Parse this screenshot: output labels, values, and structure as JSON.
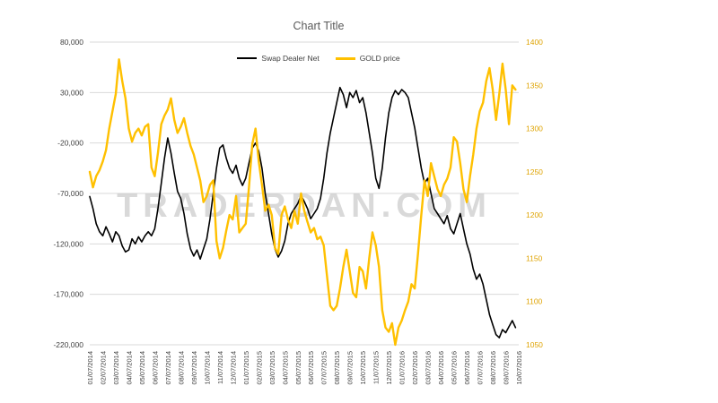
{
  "chart_data": {
    "type": "line",
    "title": "Chart Title",
    "watermark": "TRADERDAN.COM",
    "legend_position": "top",
    "grid": "horizontal",
    "x_labels": [
      "01/07/2014",
      "02/07/2014",
      "03/07/2014",
      "04/07/2014",
      "05/07/2014",
      "06/07/2014",
      "07/07/2014",
      "08/07/2014",
      "09/07/2014",
      "10/07/2014",
      "11/07/2014",
      "12/07/2014",
      "01/07/2015",
      "02/07/2015",
      "03/07/2015",
      "04/07/2015",
      "05/07/2015",
      "06/07/2015",
      "07/07/2015",
      "08/07/2015",
      "09/07/2015",
      "10/07/2015",
      "11/07/2015",
      "12/07/2015",
      "01/07/2016",
      "02/07/2016",
      "03/07/2016",
      "04/07/2016",
      "05/07/2016",
      "06/07/2016",
      "07/07/2016",
      "08/07/2016",
      "09/07/2016",
      "10/07/2016"
    ],
    "left_axis": {
      "min": -220000,
      "max": 80000,
      "tick_values": [
        80000,
        30000,
        -20000,
        -70000,
        -120000,
        -170000,
        -220000
      ],
      "tick_labels": [
        "80,000",
        "30,000",
        "-20,000",
        "-70,000",
        "-120,000",
        "-170,000",
        "-220,000"
      ]
    },
    "right_axis": {
      "min": 1050,
      "max": 1400,
      "tick_values": [
        1400,
        1350,
        1300,
        1250,
        1200,
        1150,
        1100,
        1050
      ],
      "tick_labels": [
        "1400",
        "1350",
        "1300",
        "1250",
        "1200",
        "1150",
        "1100",
        "1050"
      ]
    },
    "series": [
      {
        "id": "swap-dealer-net",
        "name": "Swap Dealer Net",
        "axis": "left",
        "color": "#000000",
        "values": [
          -73000,
          -85000,
          -100000,
          -108000,
          -112000,
          -103000,
          -110000,
          -118000,
          -108000,
          -112000,
          -122000,
          -128000,
          -126000,
          -115000,
          -120000,
          -113000,
          -118000,
          -112000,
          -108000,
          -112000,
          -105000,
          -85000,
          -60000,
          -35000,
          -15000,
          -30000,
          -50000,
          -68000,
          -75000,
          -90000,
          -110000,
          -125000,
          -132000,
          -126000,
          -135000,
          -125000,
          -115000,
          -95000,
          -70000,
          -45000,
          -25000,
          -22000,
          -35000,
          -45000,
          -50000,
          -42000,
          -55000,
          -62000,
          -55000,
          -40000,
          -25000,
          -20000,
          -28000,
          -45000,
          -70000,
          -90000,
          -110000,
          -125000,
          -133000,
          -127000,
          -117000,
          -100000,
          -90000,
          -85000,
          -80000,
          -72000,
          -78000,
          -85000,
          -95000,
          -90000,
          -85000,
          -75000,
          -55000,
          -30000,
          -10000,
          5000,
          20000,
          35000,
          28000,
          15000,
          30000,
          25000,
          32000,
          20000,
          25000,
          10000,
          -10000,
          -30000,
          -55000,
          -65000,
          -45000,
          -15000,
          10000,
          25000,
          32000,
          28000,
          33000,
          30000,
          25000,
          10000,
          -5000,
          -25000,
          -45000,
          -60000,
          -55000,
          -70000,
          -85000,
          -90000,
          -95000,
          -100000,
          -92000,
          -105000,
          -110000,
          -100000,
          -90000,
          -105000,
          -120000,
          -130000,
          -145000,
          -155000,
          -150000,
          -160000,
          -175000,
          -190000,
          -200000,
          -210000,
          -213000,
          -205000,
          -208000,
          -202000,
          -196000,
          -203000
        ]
      },
      {
        "id": "gold-price",
        "name": "GOLD price",
        "axis": "right",
        "color": "#FFC000",
        "values": [
          1250,
          1232,
          1245,
          1252,
          1262,
          1275,
          1300,
          1320,
          1340,
          1380,
          1355,
          1335,
          1300,
          1285,
          1295,
          1300,
          1292,
          1302,
          1305,
          1255,
          1245,
          1272,
          1305,
          1315,
          1322,
          1335,
          1310,
          1295,
          1302,
          1312,
          1295,
          1280,
          1270,
          1255,
          1240,
          1215,
          1222,
          1235,
          1240,
          1170,
          1150,
          1162,
          1182,
          1200,
          1195,
          1222,
          1180,
          1185,
          1190,
          1232,
          1282,
          1300,
          1262,
          1235,
          1205,
          1212,
          1200,
          1162,
          1155,
          1200,
          1210,
          1195,
          1185,
          1205,
          1190,
          1225,
          1205,
          1192,
          1180,
          1185,
          1172,
          1175,
          1165,
          1130,
          1095,
          1090,
          1095,
          1115,
          1140,
          1160,
          1135,
          1110,
          1105,
          1140,
          1135,
          1115,
          1150,
          1180,
          1165,
          1140,
          1090,
          1070,
          1065,
          1075,
          1050,
          1070,
          1078,
          1090,
          1100,
          1120,
          1115,
          1155,
          1200,
          1240,
          1222,
          1260,
          1245,
          1230,
          1222,
          1235,
          1242,
          1255,
          1290,
          1285,
          1260,
          1230,
          1215,
          1245,
          1270,
          1300,
          1320,
          1330,
          1355,
          1370,
          1345,
          1310,
          1340,
          1375,
          1345,
          1305,
          1350,
          1345
        ]
      }
    ]
  },
  "style": {
    "grid_color": "#D9D9D9",
    "axis_text_color": "#404040",
    "right_axis_text_color": "#DFA300",
    "title_color": "#595959",
    "watermark_color": "#CDCDCD"
  }
}
